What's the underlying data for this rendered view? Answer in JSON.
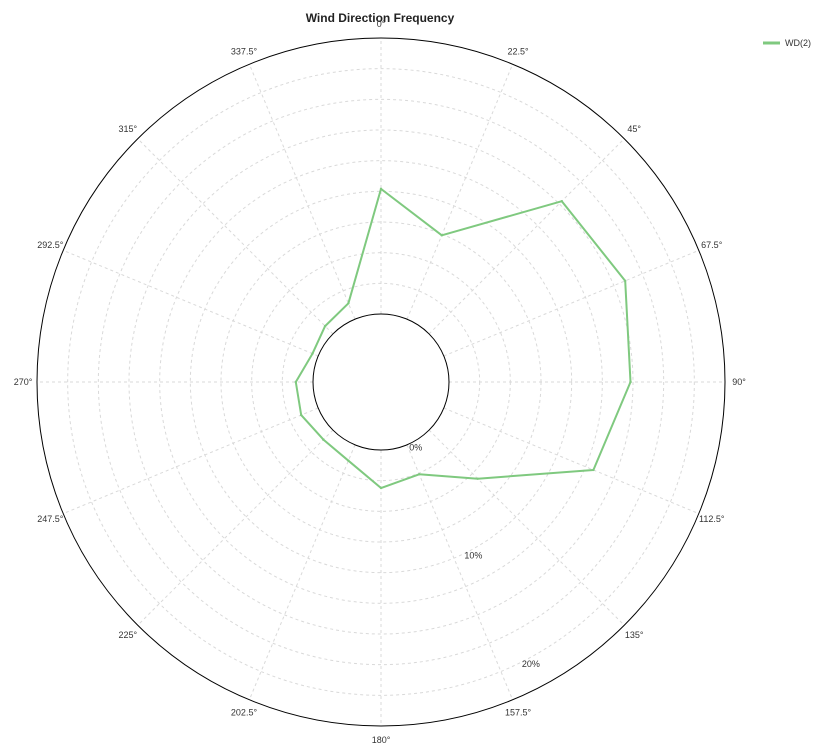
{
  "chart_data": {
    "type": "radar",
    "title": "Wind Direction Frequency",
    "directions": [
      0,
      22.5,
      45,
      67.5,
      90,
      112.5,
      135,
      157.5,
      180,
      202.5,
      225,
      247.5,
      270,
      292.5,
      315,
      337.5
    ],
    "direction_labels": [
      "0°",
      "22.5°",
      "45°",
      "67.5°",
      "90°",
      "112.5°",
      "135°",
      "157.5°",
      "180°",
      "202.5°",
      "225°",
      "247.5°",
      "270°",
      "292.5°",
      "315°",
      "337.5°"
    ],
    "radial_ticks": [
      {
        "value": 0,
        "label": "0%"
      },
      {
        "value": 10,
        "label": "10%"
      },
      {
        "value": 20,
        "label": "20%"
      }
    ],
    "rlim": [
      0,
      22.5
    ],
    "grid": true,
    "legend": "top-right",
    "series": [
      {
        "name": "WD(2)",
        "color": "#7fc97f",
        "values": [
          10.2,
          7.4,
          15.3,
          16.0,
          14.8,
          13.2,
          5.6,
          2.6,
          3.1,
          1.4,
          1.1,
          1.5,
          1.4,
          0.5,
          0.9,
          1.4
        ]
      }
    ]
  }
}
